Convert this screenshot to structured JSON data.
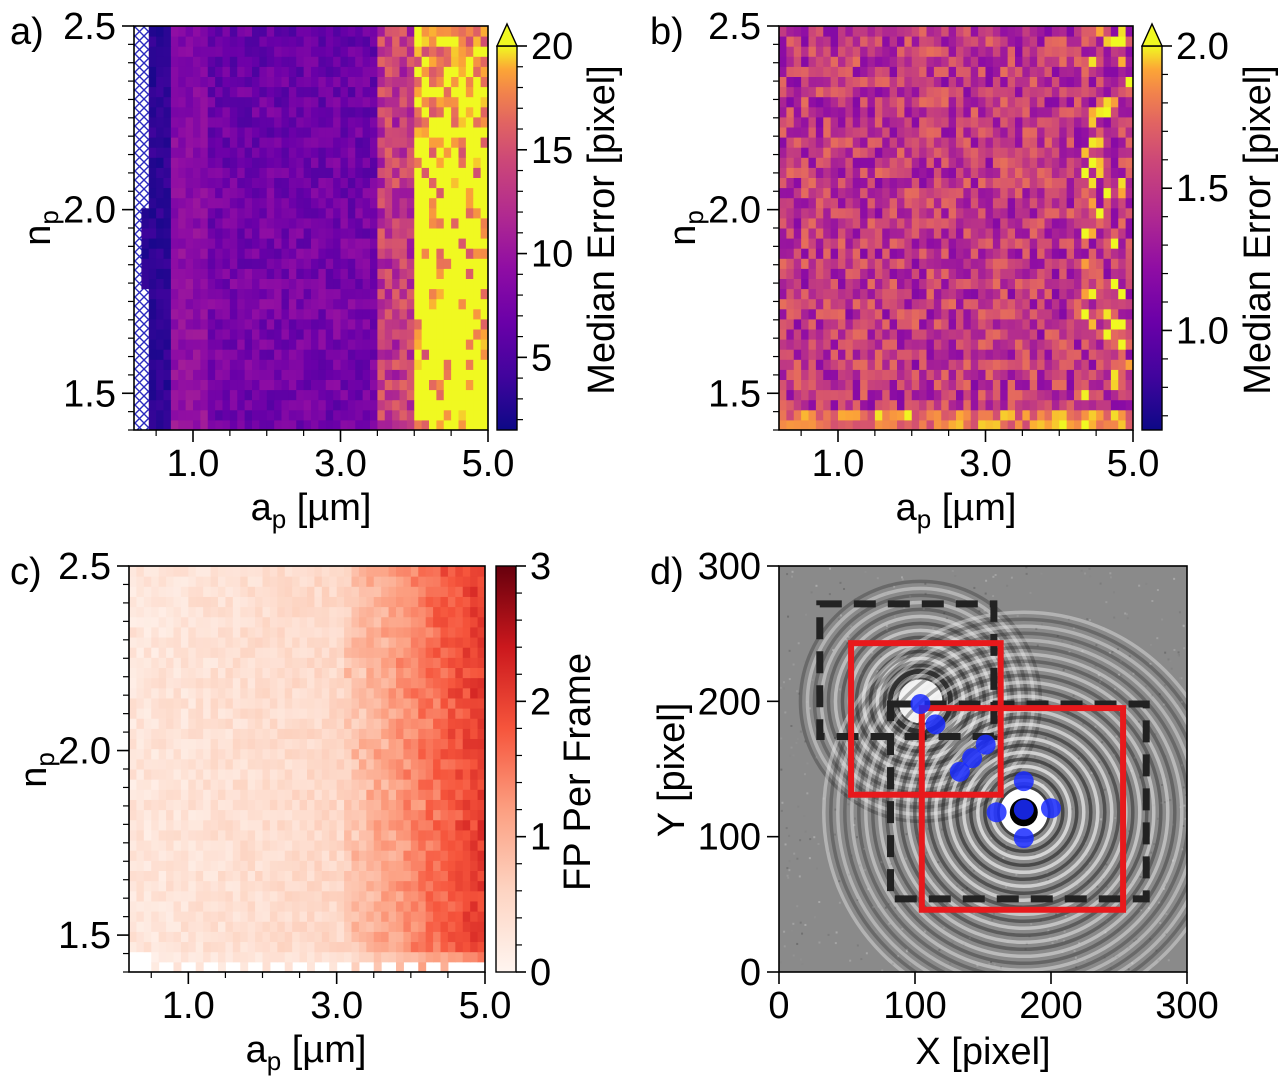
{
  "figure": {
    "caption_panels": [
      "a)",
      "b)",
      "c)",
      "d)"
    ]
  },
  "chart_data": [
    {
      "panel": "a)",
      "type": "heatmap",
      "xlabel": "a",
      "xlabel_sub": "p",
      "xlabel_unit": " [µm]",
      "ylabel": "n",
      "ylabel_sub": "p",
      "xlim": [
        0.2,
        5.0
      ],
      "ylim": [
        1.4,
        2.5
      ],
      "xticks": [
        1.0,
        3.0,
        5.0
      ],
      "xtick_labels": [
        "1.0",
        "3.0",
        "5.0"
      ],
      "yticks": [
        1.5,
        2.0,
        2.5
      ],
      "ytick_labels": [
        "1.5",
        "2.0",
        "2.5"
      ],
      "grid_shape": [
        48,
        40
      ],
      "colormap": "plasma",
      "colorbar": {
        "label": "Median Error [pixel]",
        "range": [
          1.5,
          20
        ],
        "ticks": [
          5,
          10,
          15,
          20
        ],
        "tick_labels": [
          "5",
          "10",
          "15",
          "20"
        ],
        "extend": "max"
      },
      "value_trend": "low error (~3-8 px) for small and medium particles; error rises above 20 px for a_p > 4 µm; hatched missing cells at a_p < 0.5 µm",
      "hatched_region": "a_p < 0.45 µm (no detections)"
    },
    {
      "panel": "b)",
      "type": "heatmap",
      "xlabel": "a",
      "xlabel_sub": "p",
      "xlabel_unit": " [µm]",
      "ylabel": "n",
      "ylabel_sub": "p",
      "xlim": [
        0.2,
        5.0
      ],
      "ylim": [
        1.4,
        2.5
      ],
      "xticks": [
        1.0,
        3.0,
        5.0
      ],
      "xtick_labels": [
        "1.0",
        "3.0",
        "5.0"
      ],
      "yticks": [
        1.5,
        2.0,
        2.5
      ],
      "ytick_labels": [
        "1.5",
        "2.0",
        "2.5"
      ],
      "grid_shape": [
        48,
        40
      ],
      "colormap": "plasma",
      "colorbar": {
        "label": "Median Error [pixel]",
        "range": [
          0.65,
          2.0
        ],
        "ticks": [
          1.0,
          1.5,
          2.0
        ],
        "tick_labels": [
          "1.0",
          "1.5",
          "2.0"
        ],
        "extend": "max"
      },
      "value_trend": "roughly uniform noise between ~1.0 and ~1.6 px; higher (~2 px) near the bottom rows"
    },
    {
      "panel": "c)",
      "type": "heatmap",
      "xlabel": "a",
      "xlabel_sub": "p",
      "xlabel_unit": " [µm]",
      "ylabel": "n",
      "ylabel_sub": "p",
      "xlim": [
        0.2,
        5.0
      ],
      "ylim": [
        1.4,
        2.5
      ],
      "xticks": [
        1.0,
        3.0,
        5.0
      ],
      "xtick_labels": [
        "1.0",
        "3.0",
        "5.0"
      ],
      "yticks": [
        1.5,
        2.0,
        2.5
      ],
      "ytick_labels": [
        "1.5",
        "2.0",
        "2.5"
      ],
      "grid_shape": [
        48,
        40
      ],
      "colormap": "Reds",
      "colorbar": {
        "label": "FP Per Frame",
        "range": [
          0,
          3
        ],
        "ticks": [
          0,
          1,
          2,
          3
        ],
        "tick_labels": [
          "0",
          "1",
          "2",
          "3"
        ]
      },
      "value_trend": "few false positives (~0.1-0.5) for small particles; rises to ~1.5-2.2 for a_p > 3.5 µm; lowest rows partially empty"
    },
    {
      "panel": "d)",
      "type": "scatter",
      "background": "simulated hologram with two particles",
      "xlabel": "X [pixel]",
      "ylabel": "Y [pixel]",
      "xlim": [
        0,
        300
      ],
      "ylim": [
        0,
        300
      ],
      "xticks": [
        0,
        100,
        200,
        300
      ],
      "xtick_labels": [
        "0",
        "100",
        "200",
        "300"
      ],
      "yticks": [
        0,
        100,
        200,
        300
      ],
      "ytick_labels": [
        "0",
        "100",
        "200",
        "300"
      ],
      "particles": [
        {
          "x": 104,
          "y": 200,
          "brightness": "bright"
        },
        {
          "x": 180,
          "y": 118,
          "brightness": "dark"
        }
      ],
      "dashed_boxes": [
        {
          "name": "true-box-1",
          "x0": 30,
          "y0": 174,
          "x1": 158,
          "y1": 272,
          "color": "#222222"
        },
        {
          "name": "true-box-2",
          "x0": 82,
          "y0": 54,
          "x1": 270,
          "y1": 198,
          "color": "#222222"
        }
      ],
      "solid_boxes": [
        {
          "name": "predicted-box-1",
          "x0": 53,
          "y0": 131,
          "x1": 163,
          "y1": 243,
          "color": "#e8191c"
        },
        {
          "name": "predicted-box-2",
          "x0": 105,
          "y0": 46,
          "x1": 253,
          "y1": 195,
          "color": "#e8191c"
        }
      ],
      "points": [
        {
          "x": 104,
          "y": 198
        },
        {
          "x": 115,
          "y": 183
        },
        {
          "x": 133,
          "y": 148
        },
        {
          "x": 142,
          "y": 158
        },
        {
          "x": 152,
          "y": 168
        },
        {
          "x": 160,
          "y": 118
        },
        {
          "x": 180,
          "y": 141
        },
        {
          "x": 200,
          "y": 121
        },
        {
          "x": 180,
          "y": 99
        },
        {
          "x": 180,
          "y": 120
        }
      ],
      "point_color": "#1a2cff"
    }
  ]
}
